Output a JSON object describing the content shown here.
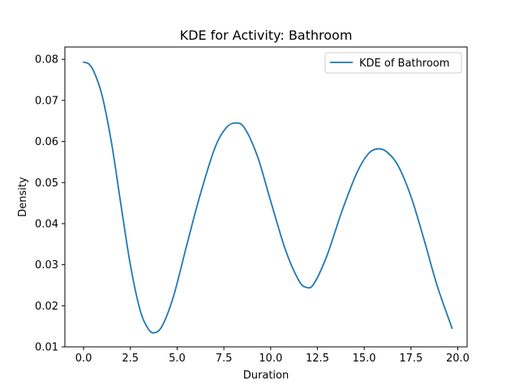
{
  "chart_data": {
    "type": "line",
    "title": "KDE for Activity: Bathroom",
    "xlabel": "Duration",
    "ylabel": "Density",
    "xlim": [
      -1,
      20.5
    ],
    "ylim": [
      0.01,
      0.083
    ],
    "x_ticks": [
      0.0,
      2.5,
      5.0,
      7.5,
      10.0,
      12.5,
      15.0,
      17.5,
      20.0
    ],
    "x_tick_labels": [
      "0.0",
      "2.5",
      "5.0",
      "7.5",
      "10.0",
      "12.5",
      "15.0",
      "17.5",
      "20.0"
    ],
    "y_ticks": [
      0.01,
      0.02,
      0.03,
      0.04,
      0.05,
      0.06,
      0.07,
      0.08
    ],
    "y_tick_labels": [
      "0.01",
      "0.02",
      "0.03",
      "0.04",
      "0.05",
      "0.06",
      "0.07",
      "0.08"
    ],
    "grid": false,
    "legend_position": "top-right",
    "series": [
      {
        "name": "KDE of Bathroom",
        "color": "#1f77b4",
        "x": [
          0.0,
          0.3,
          0.6,
          1.0,
          1.5,
          2.0,
          2.5,
          3.0,
          3.4,
          3.75,
          4.2,
          4.8,
          5.5,
          6.2,
          7.0,
          7.6,
          8.1,
          8.6,
          9.3,
          10.0,
          10.8,
          11.5,
          11.9,
          12.3,
          13.0,
          13.8,
          14.6,
          15.2,
          15.7,
          16.2,
          16.8,
          17.5,
          18.2,
          18.9,
          19.7
        ],
        "y": [
          0.0793,
          0.0788,
          0.0765,
          0.071,
          0.0595,
          0.0445,
          0.03,
          0.0193,
          0.0148,
          0.0134,
          0.0151,
          0.0222,
          0.0345,
          0.0465,
          0.0582,
          0.0632,
          0.0645,
          0.0633,
          0.0563,
          0.0455,
          0.0335,
          0.0262,
          0.0245,
          0.0253,
          0.0321,
          0.0429,
          0.0523,
          0.0569,
          0.0582,
          0.0575,
          0.0542,
          0.0466,
          0.0361,
          0.0249,
          0.0145
        ]
      }
    ]
  }
}
